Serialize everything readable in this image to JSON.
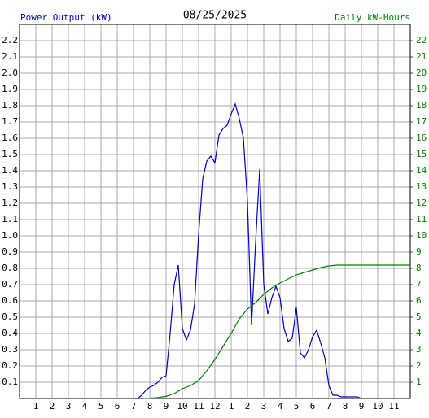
{
  "chart_data": {
    "type": "line",
    "title": "08/25/2025",
    "y_label": "Power Output (kW)",
    "y2_label": "Daily kW-Hours",
    "xlim": [
      0,
      24
    ],
    "ylim": [
      0,
      2.3
    ],
    "y2lim": [
      0,
      23
    ],
    "grid": true,
    "xticks": [
      1,
      2,
      3,
      4,
      5,
      6,
      7,
      8,
      9,
      10,
      11,
      12,
      {
        "value": 13,
        "label": "1"
      },
      {
        "value": 14,
        "label": "2"
      },
      {
        "value": 15,
        "label": "3"
      },
      {
        "value": 16,
        "label": "4"
      },
      {
        "value": 17,
        "label": "5"
      },
      {
        "value": 18,
        "label": "6"
      },
      {
        "value": 19,
        "label": "7"
      },
      {
        "value": 20,
        "label": "8"
      },
      {
        "value": 21,
        "label": "9"
      },
      {
        "value": 22,
        "label": "10"
      },
      {
        "value": 23,
        "label": "11"
      }
    ],
    "yticks": [
      0.1,
      0.2,
      0.3,
      0.4,
      0.5,
      0.6,
      0.7,
      0.8,
      0.9,
      {
        "value": 1,
        "label": "1.0"
      },
      1.1,
      1.2,
      1.3,
      1.4,
      1.5,
      1.6,
      1.7,
      1.8,
      1.9,
      {
        "value": 2,
        "label": "2.0"
      },
      2.1,
      2.2
    ],
    "y2ticks": [
      1,
      2,
      3,
      4,
      5,
      6,
      7,
      8,
      9,
      10,
      11,
      12,
      13,
      14,
      15,
      16,
      17,
      18,
      19,
      20,
      21,
      22
    ],
    "series": [
      {
        "name": "Power Output (kW)",
        "color": "#0000c0",
        "x": [
          7,
          7.25,
          7.5,
          7.75,
          8,
          8.25,
          8.5,
          8.75,
          9,
          9.25,
          9.5,
          9.75,
          10,
          10.25,
          10.5,
          10.75,
          11,
          11.25,
          11.5,
          11.75,
          12,
          12.25,
          12.5,
          12.75,
          13,
          13.25,
          13.5,
          13.75,
          14,
          14.25,
          14.5,
          14.75,
          15,
          15.25,
          15.5,
          15.75,
          16,
          16.25,
          16.5,
          16.75,
          17,
          17.25,
          17.5,
          17.75,
          18,
          18.25,
          18.5,
          18.75,
          19,
          19.25,
          19.5,
          19.75,
          20,
          20.25,
          20.5,
          20.75,
          21
        ],
        "values": [
          0,
          0,
          0.02,
          0.05,
          0.07,
          0.08,
          0.1,
          0.13,
          0.14,
          0.4,
          0.7,
          0.82,
          0.43,
          0.36,
          0.42,
          0.58,
          1.01,
          1.35,
          1.46,
          1.49,
          1.45,
          1.62,
          1.66,
          1.68,
          1.75,
          1.81,
          1.72,
          1.6,
          1.21,
          0.45,
          0.96,
          1.41,
          0.7,
          0.52,
          0.62,
          0.69,
          0.62,
          0.43,
          0.35,
          0.37,
          0.56,
          0.28,
          0.25,
          0.3,
          0.38,
          0.42,
          0.34,
          0.25,
          0.08,
          0.02,
          0.02,
          0.01,
          0.01,
          0.01,
          0.01,
          0.01,
          0
        ]
      },
      {
        "name": "Daily kW-Hours",
        "color": "#008000",
        "axis": "y2",
        "x": [
          7.5,
          8,
          8.5,
          9,
          9.5,
          10,
          10.5,
          11,
          11.5,
          12,
          12.5,
          13,
          13.5,
          14,
          14.5,
          15,
          15.5,
          16,
          16.5,
          17,
          17.5,
          18,
          18.5,
          19,
          19.5,
          24
        ],
        "values": [
          0,
          0.02,
          0.06,
          0.13,
          0.3,
          0.6,
          0.8,
          1.1,
          1.7,
          2.4,
          3.2,
          4.0,
          4.9,
          5.5,
          5.9,
          6.4,
          6.8,
          7.1,
          7.35,
          7.6,
          7.75,
          7.9,
          8.05,
          8.15,
          8.2,
          8.2
        ]
      }
    ]
  }
}
